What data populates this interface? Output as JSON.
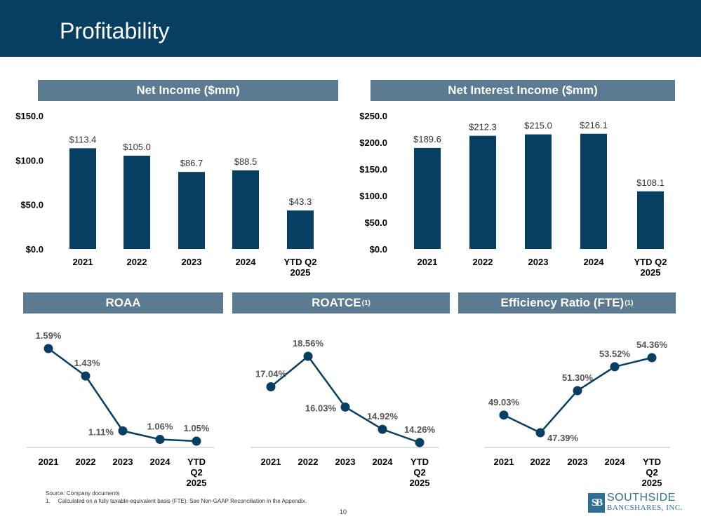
{
  "page": {
    "title": "Profitability",
    "page_number": "10",
    "source_note": "Source: Company documents",
    "footnote": "1.     Calculated on a fully taxable-equivalent basis (FTE). See Non-GAAP Reconciliation in the Appendix.",
    "logo_top": "SOUTHSIDE",
    "logo_bottom": "BANCSHARES, INC.",
    "logo_mark": "SB",
    "colors": {
      "header": "#073f62",
      "banner": "#5b7b93",
      "bar": "#073f62",
      "line": "#073f62"
    }
  },
  "banners": {
    "net_income": "Net Income ($mm)",
    "net_interest_income": "Net Interest Income ($mm)",
    "roaa": "ROAA",
    "roatce": "ROATCE",
    "roatce_sup": "(1)",
    "efficiency": "Efficiency Ratio (FTE)",
    "efficiency_sup": "(1)"
  },
  "chart_data": [
    {
      "id": "net_income",
      "type": "bar",
      "title": "Net Income ($mm)",
      "categories": [
        "2021",
        "2022",
        "2023",
        "2024",
        "YTD Q2 2025"
      ],
      "category_lines": [
        [
          "2021"
        ],
        [
          "2022"
        ],
        [
          "2023"
        ],
        [
          "2024"
        ],
        [
          "YTD Q2",
          "2025"
        ]
      ],
      "values": [
        113.4,
        105.0,
        86.7,
        88.5,
        43.3
      ],
      "labels": [
        "$113.4",
        "$105.0",
        "$86.7",
        "$88.5",
        "$43.3"
      ],
      "ylim": [
        0,
        150
      ],
      "yticks": [
        0,
        50,
        100,
        150
      ],
      "ytick_labels": [
        "$0.0",
        "$50.0",
        "$100.0",
        "$150.0"
      ]
    },
    {
      "id": "net_interest_income",
      "type": "bar",
      "title": "Net Interest Income ($mm)",
      "categories": [
        "2021",
        "2022",
        "2023",
        "2024",
        "YTD Q2 2025"
      ],
      "category_lines": [
        [
          "2021"
        ],
        [
          "2022"
        ],
        [
          "2023"
        ],
        [
          "2024"
        ],
        [
          "YTD Q2",
          "2025"
        ]
      ],
      "values": [
        189.6,
        212.3,
        215.0,
        216.1,
        108.1
      ],
      "labels": [
        "$189.6",
        "$212.3",
        "$215.0",
        "$216.1",
        "$108.1"
      ],
      "ylim": [
        0,
        250
      ],
      "yticks": [
        0,
        50,
        100,
        150,
        200,
        250
      ],
      "ytick_labels": [
        "$0.0",
        "$50.0",
        "$100.0",
        "$150.0",
        "$200.0",
        "$250.0"
      ]
    },
    {
      "id": "roaa",
      "type": "line",
      "title": "ROAA",
      "categories": [
        "2021",
        "2022",
        "2023",
        "2024",
        "YTD Q2 2025"
      ],
      "category_lines": [
        [
          "2021"
        ],
        [
          "2022"
        ],
        [
          "2023"
        ],
        [
          "2024"
        ],
        [
          "YTD",
          "Q2",
          "2025"
        ]
      ],
      "values": [
        1.59,
        1.43,
        1.11,
        1.06,
        1.05
      ],
      "labels": [
        "1.59%",
        "1.43%",
        "1.11%",
        "1.06%",
        "1.05%"
      ],
      "label_positions": [
        "above",
        "above-right",
        "left",
        "above",
        "above"
      ],
      "unit": "%"
    },
    {
      "id": "roatce",
      "type": "line",
      "title": "ROATCE(1)",
      "categories": [
        "2021",
        "2022",
        "2023",
        "2024",
        "YTD Q2 2025"
      ],
      "category_lines": [
        [
          "2021"
        ],
        [
          "2022"
        ],
        [
          "2023"
        ],
        [
          "2024"
        ],
        [
          "YTD",
          "Q2",
          "2025"
        ]
      ],
      "values": [
        17.04,
        18.56,
        16.03,
        14.92,
        14.26
      ],
      "labels": [
        "17.04%",
        "18.56%",
        "16.03%",
        "14.92%",
        "14.26%"
      ],
      "label_positions": [
        "above",
        "above",
        "left",
        "above",
        "above"
      ],
      "unit": "%"
    },
    {
      "id": "efficiency",
      "type": "line",
      "title": "Efficiency Ratio (FTE)(1)",
      "categories": [
        "2021",
        "2022",
        "2023",
        "2024",
        "YTD Q2 2025"
      ],
      "category_lines": [
        [
          "2021"
        ],
        [
          "2022"
        ],
        [
          "2023"
        ],
        [
          "2024"
        ],
        [
          "YTD",
          "Q2",
          "2025"
        ]
      ],
      "values": [
        49.03,
        47.39,
        51.3,
        53.52,
        54.36
      ],
      "labels": [
        "49.03%",
        "47.39%",
        "51.30%",
        "53.52%",
        "54.36%"
      ],
      "label_positions": [
        "above",
        "below-right",
        "above",
        "above",
        "above"
      ],
      "unit": "%"
    }
  ]
}
